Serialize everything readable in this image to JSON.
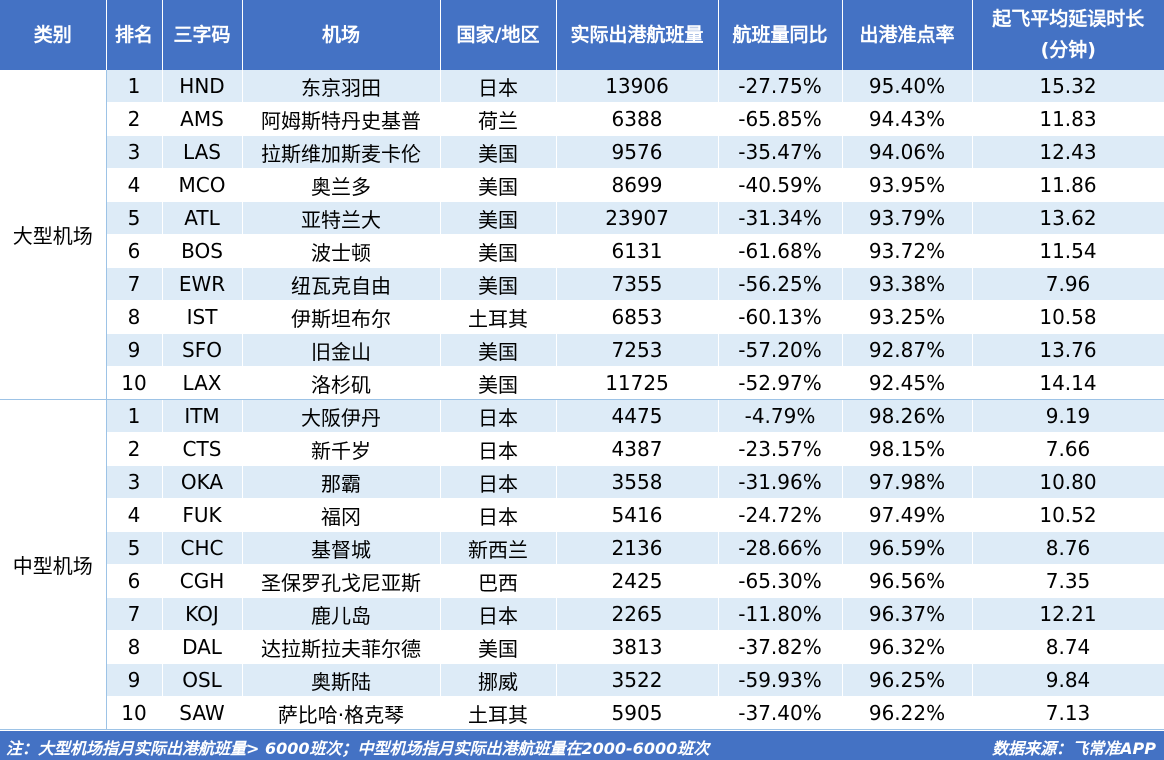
{
  "headers": [
    "类别",
    "排名",
    "三字码",
    "机场",
    "国家/地区",
    "实际出港航班量",
    "航班量同比",
    "出港准点率",
    "起飞平均延误时长",
    "(分钟)"
  ],
  "groups": [
    {
      "category": "大型机场",
      "rows": [
        [
          "1",
          "HND",
          "东京羽田",
          "日本",
          "13906",
          "-27.75%",
          "95.40%",
          "15.32"
        ],
        [
          "2",
          "AMS",
          "阿姆斯特丹史基普",
          "荷兰",
          "6388",
          "-65.85%",
          "94.43%",
          "11.83"
        ],
        [
          "3",
          "LAS",
          "拉斯维加斯麦卡伦",
          "美国",
          "9576",
          "-35.47%",
          "94.06%",
          "12.43"
        ],
        [
          "4",
          "MCO",
          "奥兰多",
          "美国",
          "8699",
          "-40.59%",
          "93.95%",
          "11.86"
        ],
        [
          "5",
          "ATL",
          "亚特兰大",
          "美国",
          "23907",
          "-31.34%",
          "93.79%",
          "13.62"
        ],
        [
          "6",
          "BOS",
          "波士顿",
          "美国",
          "6131",
          "-61.68%",
          "93.72%",
          "11.54"
        ],
        [
          "7",
          "EWR",
          "纽瓦克自由",
          "美国",
          "7355",
          "-56.25%",
          "93.38%",
          "7.96"
        ],
        [
          "8",
          "IST",
          "伊斯坦布尔",
          "土耳其",
          "6853",
          "-60.13%",
          "93.25%",
          "10.58"
        ],
        [
          "9",
          "SFO",
          "旧金山",
          "美国",
          "7253",
          "-57.20%",
          "92.87%",
          "13.76"
        ],
        [
          "10",
          "LAX",
          "洛杉矶",
          "美国",
          "11725",
          "-52.97%",
          "92.45%",
          "14.14"
        ]
      ]
    },
    {
      "category": "中型机场",
      "rows": [
        [
          "1",
          "ITM",
          "大阪伊丹",
          "日本",
          "4475",
          "-4.79%",
          "98.26%",
          "9.19"
        ],
        [
          "2",
          "CTS",
          "新千岁",
          "日本",
          "4387",
          "-23.57%",
          "98.15%",
          "7.66"
        ],
        [
          "3",
          "OKA",
          "那霸",
          "日本",
          "3558",
          "-31.96%",
          "97.98%",
          "10.80"
        ],
        [
          "4",
          "FUK",
          "福冈",
          "日本",
          "5416",
          "-24.72%",
          "97.49%",
          "10.52"
        ],
        [
          "5",
          "CHC",
          "基督城",
          "新西兰",
          "2136",
          "-28.66%",
          "96.59%",
          "8.76"
        ],
        [
          "6",
          "CGH",
          "圣保罗孔戈尼亚斯",
          "巴西",
          "2425",
          "-65.30%",
          "96.56%",
          "7.35"
        ],
        [
          "7",
          "KOJ",
          "鹿儿岛",
          "日本",
          "2265",
          "-11.80%",
          "96.37%",
          "12.21"
        ],
        [
          "8",
          "DAL",
          "达拉斯拉夫菲尔德",
          "美国",
          "3813",
          "-37.82%",
          "96.32%",
          "8.74"
        ],
        [
          "9",
          "OSL",
          "奥斯陆",
          "挪威",
          "3522",
          "-59.93%",
          "96.25%",
          "9.84"
        ],
        [
          "10",
          "SAW",
          "萨比哈·格克琴",
          "土耳其",
          "5905",
          "-37.40%",
          "96.22%",
          "7.13"
        ]
      ]
    }
  ],
  "footer": {
    "note": "注：大型机场指月实际出港航班量> 6000班次；中型机场指月实际出港航班量在2000-6000班次",
    "source": "数据来源：飞常准APP"
  },
  "colors": {
    "header_bg": "#4472C4",
    "band_bg": "#DDEBF7",
    "header_text": "#FFFFFF"
  }
}
